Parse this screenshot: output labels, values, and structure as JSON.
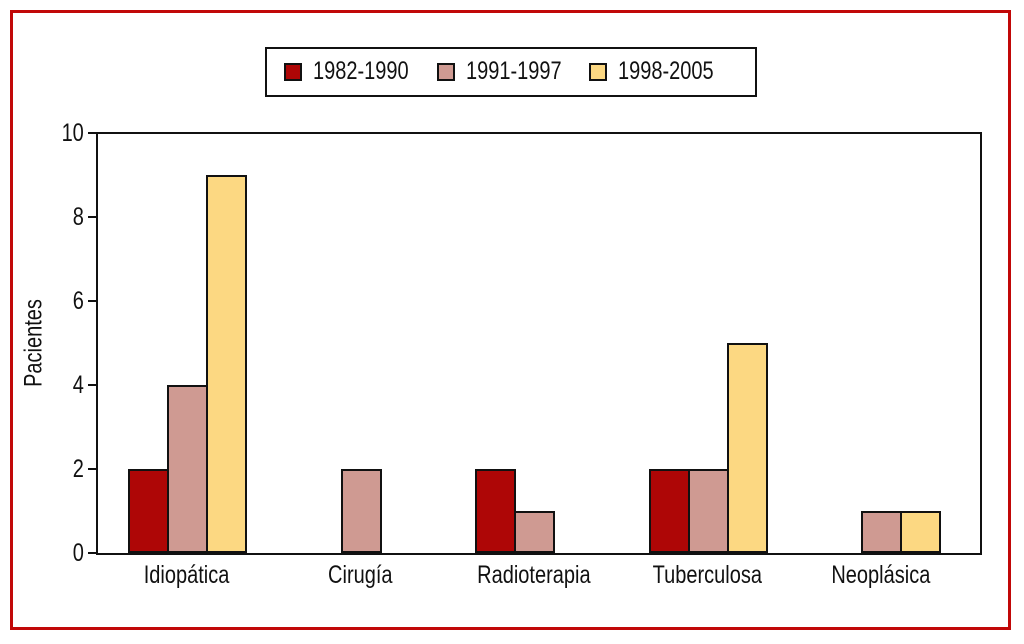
{
  "frame_color": "#c10808",
  "axis_color": "#111111",
  "chart_data": {
    "type": "bar",
    "title": "",
    "xlabel": "",
    "ylabel": "Pacientes",
    "ylim": [
      0,
      10
    ],
    "yticks": [
      0,
      2,
      4,
      6,
      8,
      10
    ],
    "grid": false,
    "legend_position": "top",
    "categories": [
      "Idiopática",
      "Cirugía",
      "Radioterapia",
      "Tuberculosa",
      "Neoplásica"
    ],
    "series": [
      {
        "name": "1982-1990",
        "color": "#ae0606",
        "values": [
          2,
          0,
          2,
          2,
          0
        ]
      },
      {
        "name": "1991-1997",
        "color": "#cf9a92",
        "values": [
          4,
          2,
          1,
          2,
          1
        ]
      },
      {
        "name": "1998-2005",
        "color": "#fcd882",
        "values": [
          9,
          0,
          0,
          5,
          1
        ]
      }
    ]
  }
}
